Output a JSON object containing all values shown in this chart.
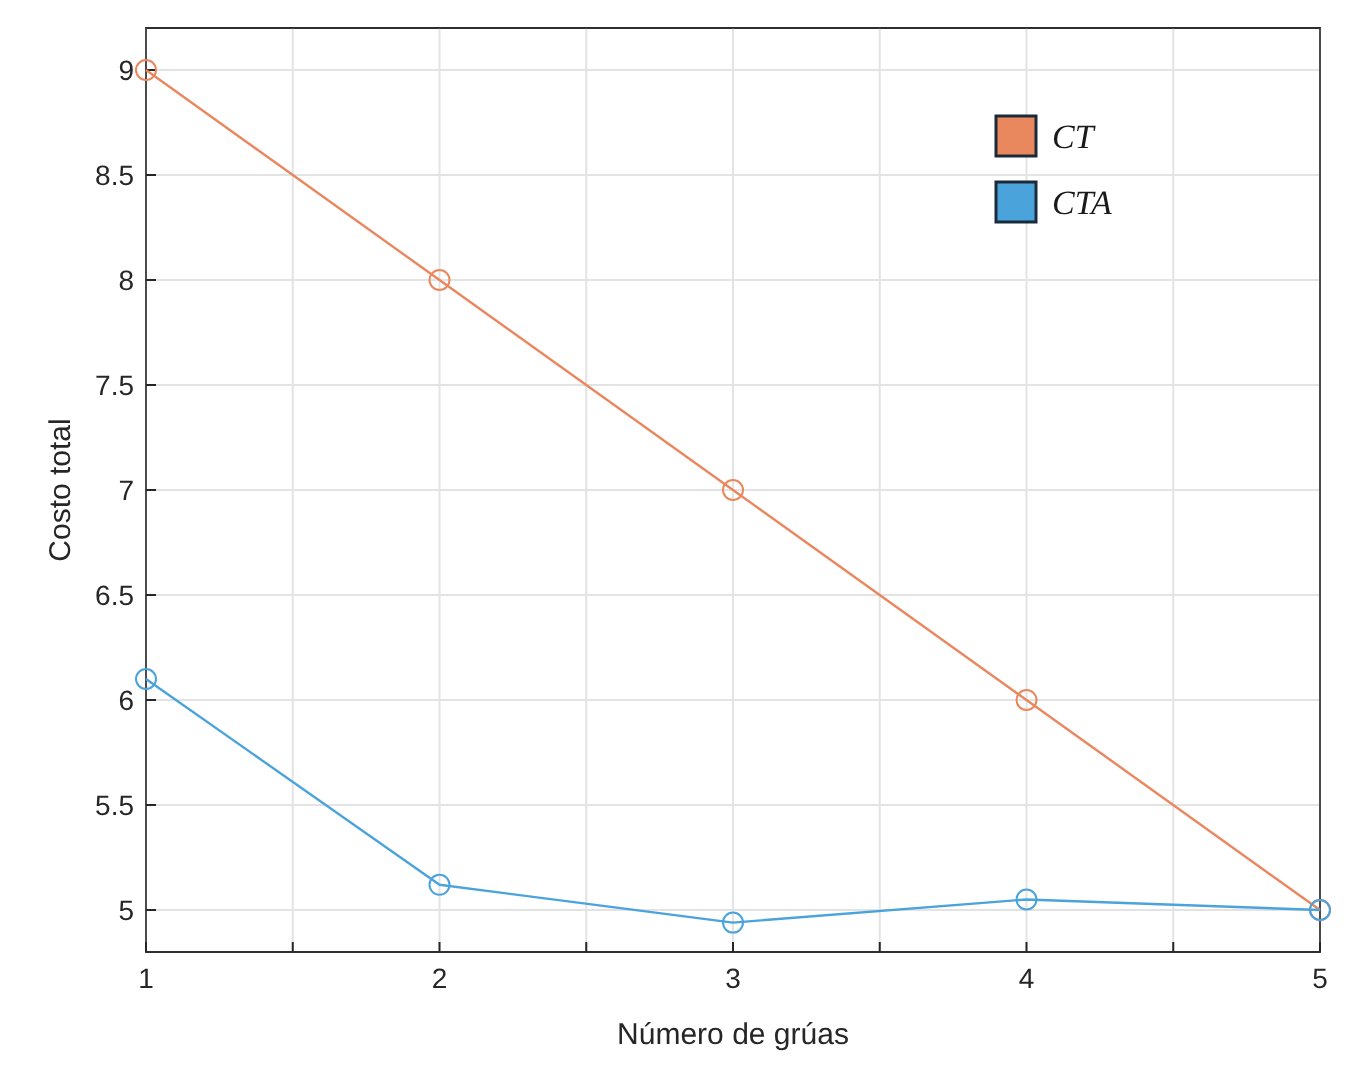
{
  "chart_data": {
    "type": "line",
    "xlabel": "Número de grúas",
    "ylabel": "Costo total",
    "x": [
      1,
      2,
      3,
      4,
      5
    ],
    "series": [
      {
        "name": "CT",
        "color": "#e9875f",
        "values": [
          9,
          8,
          7,
          6,
          5
        ]
      },
      {
        "name": "CTA",
        "color": "#4ba3dc",
        "values": [
          6.1,
          5.12,
          4.94,
          5.05,
          5.0
        ]
      }
    ],
    "xlim": [
      1,
      5
    ],
    "xticks": [
      1,
      {
        "value": 1.5,
        "label": null
      },
      2,
      {
        "value": 2.5,
        "label": null
      },
      3,
      {
        "value": 3.5,
        "label": null
      },
      4,
      {
        "value": 4.5,
        "label": null
      },
      5
    ],
    "ylim": [
      4.8,
      9.2
    ],
    "yticks": [
      5,
      5.5,
      6,
      6.5,
      7,
      7.5,
      8,
      8.5,
      9
    ],
    "grid": true,
    "legend": "top right",
    "marker": "circle",
    "line_style": "solid"
  }
}
